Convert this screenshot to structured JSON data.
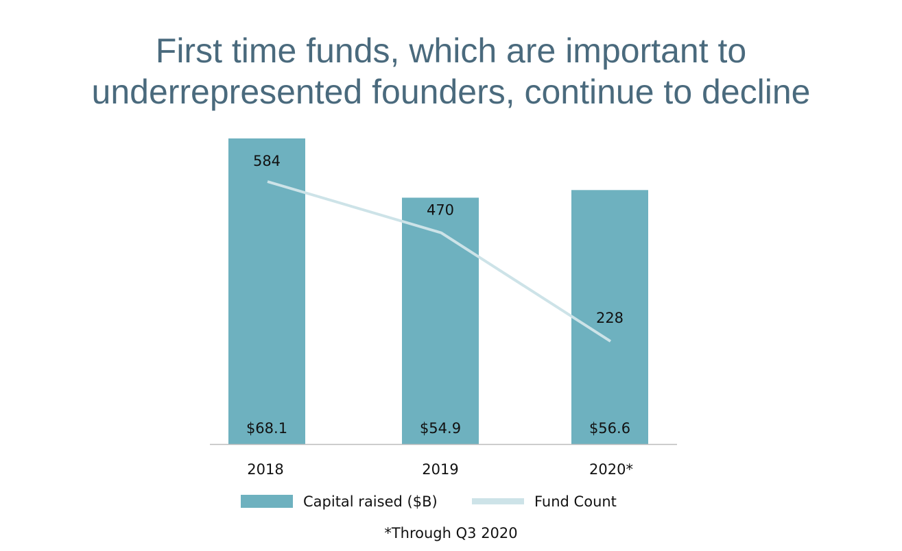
{
  "title_lines": [
    "First time funds, which are important to",
    "underrepresented founders, continue to decline"
  ],
  "footnote": "*Through Q3 2020",
  "colors": {
    "bar": "#6eb1bf",
    "line": "#cde3e8",
    "title": "#4a6a7d",
    "axis": "#bbbbbb",
    "text": "#111111"
  },
  "chart_data": {
    "type": "bar",
    "categories": [
      "2018",
      "2019",
      "2020*"
    ],
    "series": [
      {
        "name": "Capital raised ($B)",
        "type": "bar",
        "values": [
          68.1,
          54.9,
          56.6
        ],
        "labels": [
          "$68.1",
          "$54.9",
          "$56.6"
        ]
      },
      {
        "name": "Fund Count",
        "type": "line",
        "values": [
          584,
          470,
          228
        ],
        "labels": [
          "584",
          "470",
          "228"
        ]
      }
    ],
    "grid": false,
    "legend_position": "bottom-center"
  }
}
